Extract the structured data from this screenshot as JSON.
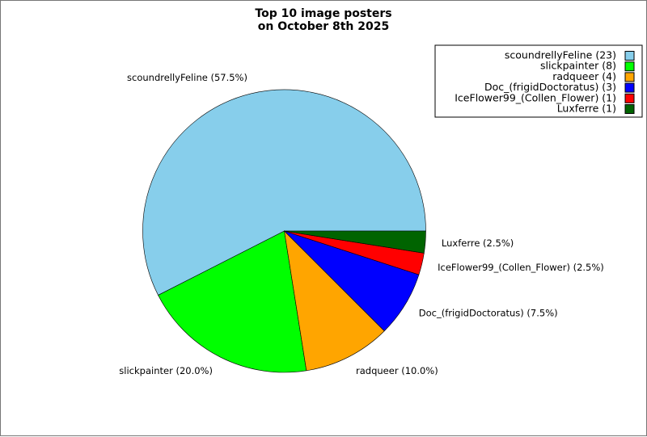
{
  "chart_data": {
    "type": "pie",
    "title": [
      "Top 10 image posters",
      "on October 8th 2025"
    ],
    "legend_position": "top-right",
    "start_angle_deg": 0,
    "direction": "counterclockwise",
    "slices": [
      {
        "name": "scoundrellyFeline",
        "value": 23,
        "label": "scoundrellyFeline (57.5%)",
        "legend": "scoundrellyFeline (23)",
        "color": "#87CEEB"
      },
      {
        "name": "slickpainter",
        "value": 8,
        "label": "slickpainter (20.0%)",
        "legend": "slickpainter (8)",
        "color": "#00FF00"
      },
      {
        "name": "radqueer",
        "value": 4,
        "label": "radqueer (10.0%)",
        "legend": "radqueer (4)",
        "color": "#FFA500"
      },
      {
        "name": "Doc_(frigidDoctoratus)",
        "value": 3,
        "label": "Doc_(frigidDoctoratus) (7.5%)",
        "legend": "Doc_(frigidDoctoratus) (3)",
        "color": "#0000FF"
      },
      {
        "name": "IceFlower99_(Collen_Flower)",
        "value": 1,
        "label": "IceFlower99_(Collen_Flower) (2.5%)",
        "legend": "IceFlower99_(Collen_Flower) (1)",
        "color": "#FF0000"
      },
      {
        "name": "Luxferre",
        "value": 1,
        "label": "Luxferre (2.5%)",
        "legend": "Luxferre (1)",
        "color": "#006400"
      }
    ]
  }
}
